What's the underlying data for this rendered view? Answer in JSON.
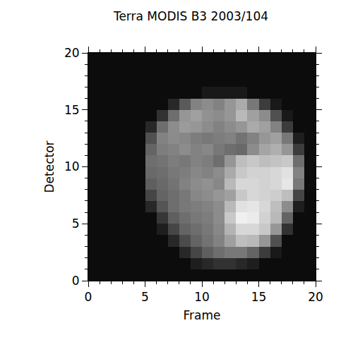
{
  "chart_data": {
    "type": "heatmap",
    "title": "Terra MODIS B3 2003/104",
    "x_label": "Frame",
    "y_label": "Detector",
    "x": [
      0.5,
      1.5,
      2.5,
      3.5,
      4.5,
      5.5,
      6.5,
      7.5,
      8.5,
      9.5,
      10.5,
      11.5,
      12.5,
      13.5,
      14.5,
      15.5,
      16.5,
      17.5,
      18.5,
      19.5
    ],
    "y": [
      0.5,
      1.5,
      2.5,
      3.5,
      4.5,
      5.5,
      6.5,
      7.5,
      8.5,
      9.5,
      10.5,
      11.5,
      12.5,
      13.5,
      14.5,
      15.5,
      16.5,
      17.5,
      18.5,
      19.5
    ],
    "z": [
      [
        12,
        12,
        12,
        12,
        12,
        12,
        12,
        12,
        12,
        12,
        12,
        12,
        12,
        12,
        12,
        12,
        12,
        12,
        12,
        12
      ],
      [
        12,
        12,
        12,
        12,
        12,
        12,
        12,
        12,
        12,
        30,
        40,
        50,
        50,
        40,
        30,
        12,
        12,
        12,
        12,
        12
      ],
      [
        12,
        12,
        12,
        12,
        12,
        12,
        12,
        12,
        40,
        70,
        95,
        110,
        120,
        120,
        100,
        60,
        25,
        12,
        12,
        12
      ],
      [
        12,
        12,
        12,
        12,
        12,
        12,
        12,
        40,
        75,
        100,
        115,
        130,
        160,
        190,
        185,
        150,
        80,
        12,
        12,
        12
      ],
      [
        12,
        12,
        12,
        12,
        12,
        12,
        30,
        70,
        100,
        110,
        120,
        135,
        180,
        215,
        215,
        200,
        150,
        50,
        12,
        12
      ],
      [
        12,
        12,
        12,
        12,
        12,
        12,
        55,
        95,
        110,
        120,
        125,
        140,
        200,
        240,
        235,
        210,
        185,
        100,
        12,
        12
      ],
      [
        12,
        12,
        12,
        12,
        12,
        40,
        85,
        110,
        120,
        125,
        130,
        140,
        185,
        225,
        230,
        215,
        190,
        140,
        30,
        12
      ],
      [
        12,
        12,
        12,
        12,
        12,
        70,
        100,
        110,
        120,
        135,
        140,
        150,
        160,
        200,
        215,
        210,
        205,
        190,
        70,
        12
      ],
      [
        12,
        12,
        12,
        12,
        12,
        95,
        105,
        115,
        130,
        140,
        145,
        135,
        185,
        215,
        215,
        210,
        215,
        230,
        120,
        12
      ],
      [
        12,
        12,
        12,
        12,
        12,
        105,
        110,
        120,
        125,
        135,
        130,
        140,
        170,
        200,
        210,
        210,
        215,
        225,
        130,
        12
      ],
      [
        12,
        12,
        12,
        12,
        12,
        110,
        115,
        125,
        120,
        130,
        125,
        110,
        150,
        190,
        200,
        190,
        195,
        200,
        110,
        12
      ],
      [
        12,
        12,
        12,
        12,
        12,
        100,
        125,
        130,
        140,
        130,
        135,
        120,
        110,
        105,
        140,
        165,
        175,
        150,
        60,
        12
      ],
      [
        12,
        12,
        12,
        12,
        12,
        80,
        130,
        140,
        135,
        125,
        120,
        125,
        130,
        115,
        130,
        150,
        160,
        120,
        30,
        12
      ],
      [
        12,
        12,
        12,
        12,
        12,
        40,
        110,
        140,
        155,
        150,
        140,
        130,
        140,
        150,
        170,
        160,
        130,
        60,
        12,
        12
      ],
      [
        12,
        12,
        12,
        12,
        12,
        12,
        50,
        110,
        150,
        160,
        145,
        140,
        150,
        185,
        160,
        140,
        80,
        25,
        12,
        12
      ],
      [
        12,
        12,
        12,
        12,
        12,
        12,
        12,
        40,
        90,
        130,
        140,
        130,
        150,
        170,
        120,
        60,
        25,
        12,
        12,
        12
      ],
      [
        12,
        12,
        12,
        12,
        12,
        12,
        12,
        12,
        12,
        12,
        25,
        25,
        25,
        25,
        12,
        12,
        12,
        12,
        12,
        12
      ],
      [
        12,
        12,
        12,
        12,
        12,
        12,
        12,
        12,
        12,
        12,
        12,
        12,
        12,
        12,
        12,
        12,
        12,
        12,
        12,
        12
      ],
      [
        12,
        12,
        12,
        12,
        12,
        12,
        12,
        12,
        12,
        12,
        12,
        12,
        12,
        12,
        12,
        12,
        12,
        12,
        12,
        12
      ],
      [
        12,
        12,
        12,
        12,
        12,
        12,
        12,
        12,
        12,
        12,
        12,
        12,
        12,
        12,
        12,
        12,
        12,
        12,
        12,
        12
      ]
    ],
    "zlim": [
      0,
      255
    ],
    "xlim": [
      0,
      20
    ],
    "xticks": [
      0,
      5,
      10,
      15,
      20
    ],
    "ylim": [
      0,
      20
    ],
    "yticks": [
      0,
      5,
      10,
      15,
      20
    ]
  }
}
